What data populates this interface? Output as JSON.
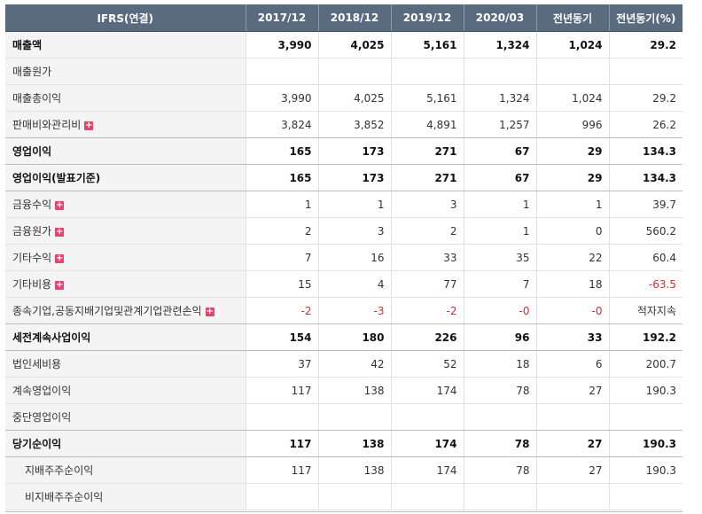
{
  "header": {
    "label_col": "IFRS(연결)",
    "periods": [
      "2017/12",
      "2018/12",
      "2019/12",
      "2020/03",
      "전년동기",
      "전년동기(%)"
    ]
  },
  "rows": [
    {
      "label": "매출액",
      "values": [
        "3,990",
        "4,025",
        "5,161",
        "1,324",
        "1,024",
        "29.2"
      ],
      "bold": true,
      "expand": false
    },
    {
      "label": "매출원가",
      "values": [
        "",
        "",
        "",
        "",
        "",
        ""
      ],
      "bold": false,
      "expand": false
    },
    {
      "label": "매출총이익",
      "values": [
        "3,990",
        "4,025",
        "5,161",
        "1,324",
        "1,024",
        "29.2"
      ],
      "bold": false,
      "expand": false
    },
    {
      "label": "판매비와관리비",
      "values": [
        "3,824",
        "3,852",
        "4,891",
        "1,257",
        "996",
        "26.2"
      ],
      "bold": false,
      "expand": true
    },
    {
      "label": "영업이익",
      "values": [
        "165",
        "173",
        "271",
        "67",
        "29",
        "134.3"
      ],
      "bold": true,
      "expand": false
    },
    {
      "label": "영업이익(발표기준)",
      "values": [
        "165",
        "173",
        "271",
        "67",
        "29",
        "134.3"
      ],
      "bold": true,
      "expand": false
    },
    {
      "label": "금융수익",
      "values": [
        "1",
        "1",
        "3",
        "1",
        "1",
        "39.7"
      ],
      "bold": false,
      "expand": true
    },
    {
      "label": "금융원가",
      "values": [
        "2",
        "3",
        "2",
        "1",
        "0",
        "560.2"
      ],
      "bold": false,
      "expand": true
    },
    {
      "label": "기타수익",
      "values": [
        "7",
        "16",
        "33",
        "35",
        "22",
        "60.4"
      ],
      "bold": false,
      "expand": true
    },
    {
      "label": "기타비용",
      "values": [
        "15",
        "4",
        "77",
        "7",
        "18",
        "-63.5"
      ],
      "bold": false,
      "expand": true
    },
    {
      "label": "종속기업,공동지배기업및관계기업관련손익",
      "values": [
        "-2",
        "-3",
        "-2",
        "-0",
        "-0",
        "적자지속"
      ],
      "bold": false,
      "expand": true
    },
    {
      "label": "세전계속사업이익",
      "values": [
        "154",
        "180",
        "226",
        "96",
        "33",
        "192.2"
      ],
      "bold": true,
      "expand": false
    },
    {
      "label": "법인세비용",
      "values": [
        "37",
        "42",
        "52",
        "18",
        "6",
        "200.7"
      ],
      "bold": false,
      "expand": false
    },
    {
      "label": "계속영업이익",
      "values": [
        "117",
        "138",
        "174",
        "78",
        "27",
        "190.3"
      ],
      "bold": false,
      "expand": false
    },
    {
      "label": "중단영업이익",
      "values": [
        "",
        "",
        "",
        "",
        "",
        ""
      ],
      "bold": false,
      "expand": false
    },
    {
      "label": "당기순이익",
      "values": [
        "117",
        "138",
        "174",
        "78",
        "27",
        "190.3"
      ],
      "bold": true,
      "expand": false
    },
    {
      "label": "지배주주순이익",
      "values": [
        "117",
        "138",
        "174",
        "78",
        "27",
        "190.3"
      ],
      "bold": false,
      "expand": false,
      "indent": true
    },
    {
      "label": "비지배주주순이익",
      "values": [
        "",
        "",
        "",
        "",
        "",
        ""
      ],
      "bold": false,
      "expand": false,
      "indent": true
    }
  ],
  "colors": {
    "header_bg": "#5a6b80",
    "negative": "#e0282e",
    "expand_icon": "#e8426d"
  },
  "expand_icon_glyph": "+"
}
